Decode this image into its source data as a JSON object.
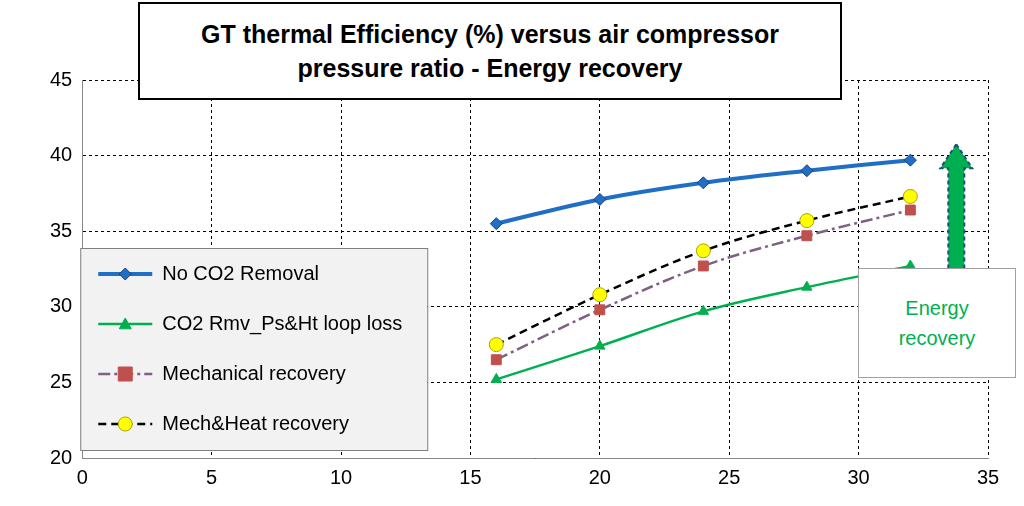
{
  "chart_data": {
    "type": "line",
    "title": [
      "GT thermal Efficiency (%) versus air compressor",
      "pressure ratio - Energy recovery"
    ],
    "annotation": "Energy recovery",
    "x": [
      16,
      20,
      24,
      28,
      32
    ],
    "series": [
      {
        "name": "No CO2 Removal",
        "color": "#1f6fc6",
        "marker": "diamond",
        "line_style": "solid",
        "values": [
          35.5,
          37.1,
          38.2,
          39.0,
          39.7
        ]
      },
      {
        "name": "CO2 Rmv_Ps&Ht loop loss",
        "color": "#00b050",
        "marker": "triangle",
        "line_style": "solid",
        "values": [
          25.2,
          27.4,
          29.7,
          31.3,
          32.7
        ]
      },
      {
        "name": "Mechanical recovery",
        "color": "#7f6084",
        "marker": "square",
        "line_style": "dashdot",
        "values": [
          26.5,
          29.8,
          32.7,
          34.7,
          36.4
        ]
      },
      {
        "name": "Mech&Heat recovery",
        "color": "#000000",
        "marker": "circle",
        "line_style": "dashed",
        "values": [
          27.5,
          30.8,
          33.7,
          35.7,
          37.3
        ]
      }
    ],
    "xlim": [
      0,
      35
    ],
    "xticks": [
      0,
      5,
      10,
      15,
      20,
      25,
      30,
      35
    ],
    "ylim": [
      20,
      45
    ],
    "yticks": [
      20,
      25,
      30,
      35,
      40,
      45
    ],
    "grid": true,
    "legend": "lower left"
  }
}
